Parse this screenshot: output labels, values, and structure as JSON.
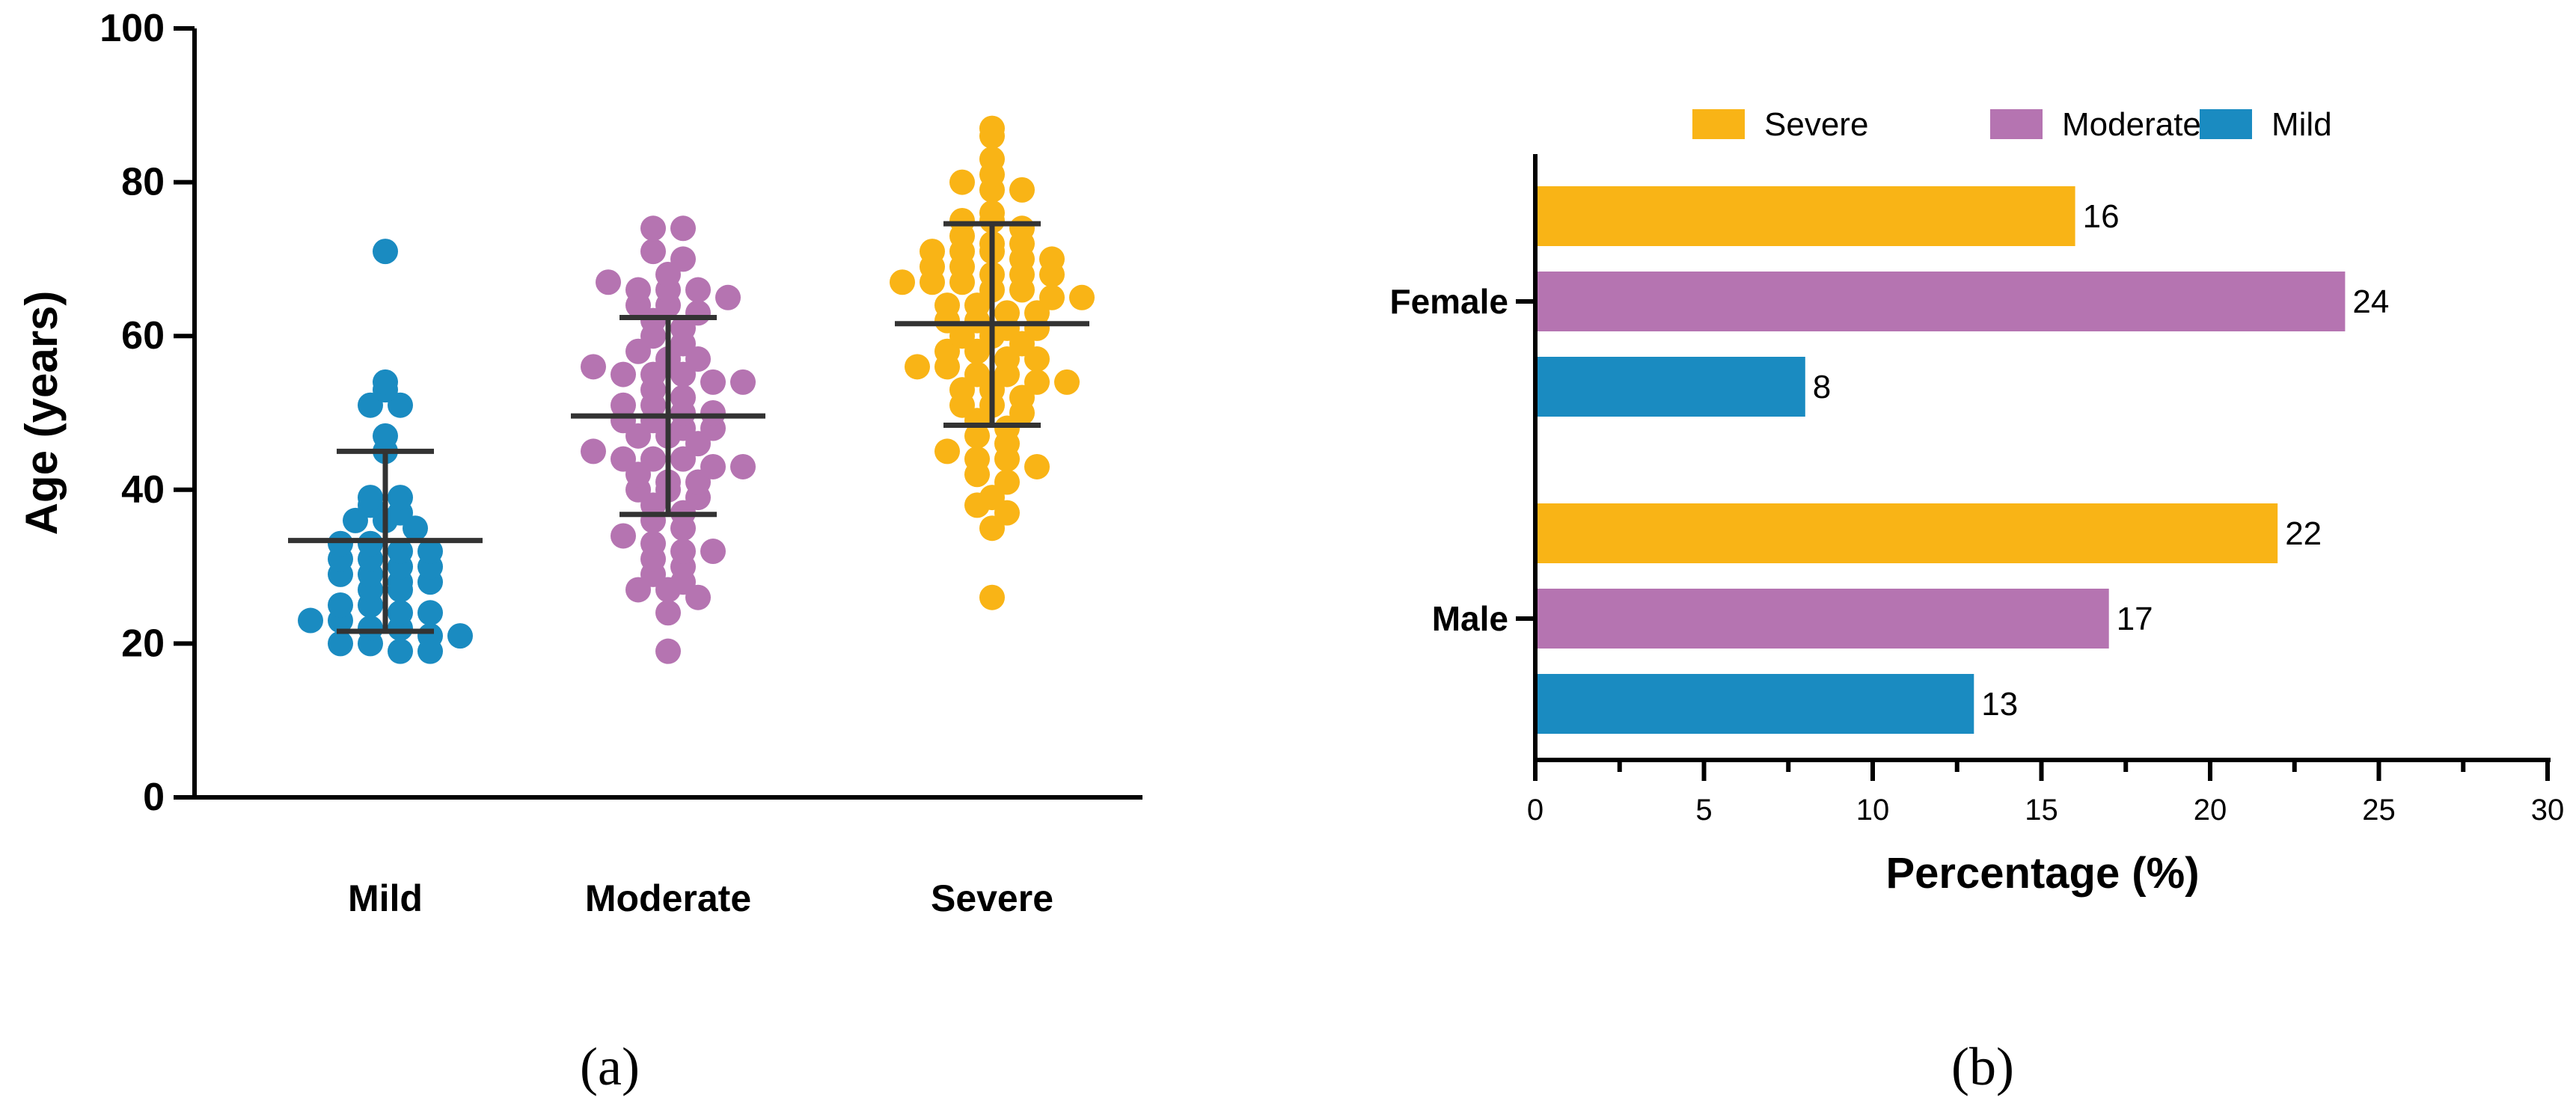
{
  "chart_data": [
    {
      "type": "scatter",
      "panel_label": "(a)",
      "ylabel": "Age (years)",
      "xlabel": "",
      "ylim": [
        0,
        100
      ],
      "yticks": [
        0,
        20,
        40,
        60,
        80,
        100
      ],
      "categories": [
        "Mild",
        "Moderate",
        "Severe"
      ],
      "colors": {
        "Mild": "#1a8bc1",
        "Moderate": "#b574b1",
        "Severe": "#f9b416"
      },
      "series": [
        {
          "name": "Mild",
          "mean": 33.4,
          "sd_low": 21.6,
          "sd_high": 45.0,
          "values": [
            71,
            54,
            53,
            51,
            51,
            47,
            45,
            39,
            39,
            38,
            37,
            36,
            36,
            35,
            33,
            33,
            32,
            32,
            31,
            31,
            30,
            30,
            29,
            29,
            28,
            28,
            27,
            27,
            25,
            25,
            24,
            24,
            23,
            23,
            22,
            22,
            21,
            21,
            20,
            20,
            19,
            19
          ]
        },
        {
          "name": "Moderate",
          "mean": 49.6,
          "sd_low": 36.8,
          "sd_high": 62.4,
          "values": [
            74,
            74,
            71,
            70,
            68,
            67,
            66,
            66,
            66,
            65,
            64,
            64,
            63,
            62,
            61,
            60,
            59,
            58,
            57,
            57,
            56,
            55,
            55,
            55,
            54,
            54,
            53,
            52,
            51,
            51,
            50,
            50,
            49,
            49,
            48,
            48,
            47,
            47,
            46,
            45,
            44,
            44,
            44,
            43,
            43,
            42,
            41,
            41,
            40,
            40,
            39,
            38,
            37,
            36,
            35,
            34,
            33,
            32,
            32,
            31,
            30,
            29,
            28,
            27,
            27,
            26,
            24,
            19
          ]
        },
        {
          "name": "Severe",
          "mean": 61.6,
          "sd_low": 48.4,
          "sd_high": 74.6,
          "values": [
            87,
            86,
            83,
            81,
            80,
            79,
            79,
            76,
            75,
            75,
            74,
            73,
            72,
            72,
            71,
            71,
            71,
            70,
            70,
            69,
            69,
            68,
            68,
            68,
            67,
            67,
            67,
            66,
            66,
            65,
            65,
            64,
            64,
            63,
            63,
            62,
            62,
            61,
            61,
            60,
            60,
            59,
            58,
            58,
            57,
            57,
            56,
            56,
            55,
            55,
            54,
            54,
            53,
            53,
            52,
            51,
            51,
            50,
            49,
            48,
            47,
            46,
            45,
            44,
            44,
            43,
            42,
            41,
            39,
            38,
            37,
            35,
            26
          ]
        }
      ]
    },
    {
      "type": "bar",
      "orientation": "horizontal",
      "panel_label": "(b)",
      "xlabel": "Percentage (%)",
      "ylabel": "",
      "xlim": [
        0,
        30
      ],
      "xticks": [
        0,
        5,
        10,
        15,
        20,
        25,
        30
      ],
      "categories": [
        "Female",
        "Male"
      ],
      "legend_position": "top",
      "series": [
        {
          "name": "Severe",
          "color": "#f9b416",
          "values": [
            16,
            22
          ]
        },
        {
          "name": "Moderate",
          "color": "#b574b1",
          "values": [
            24,
            17
          ]
        },
        {
          "name": "Mild",
          "color": "#1a8bc1",
          "values": [
            8,
            13
          ]
        }
      ]
    }
  ]
}
